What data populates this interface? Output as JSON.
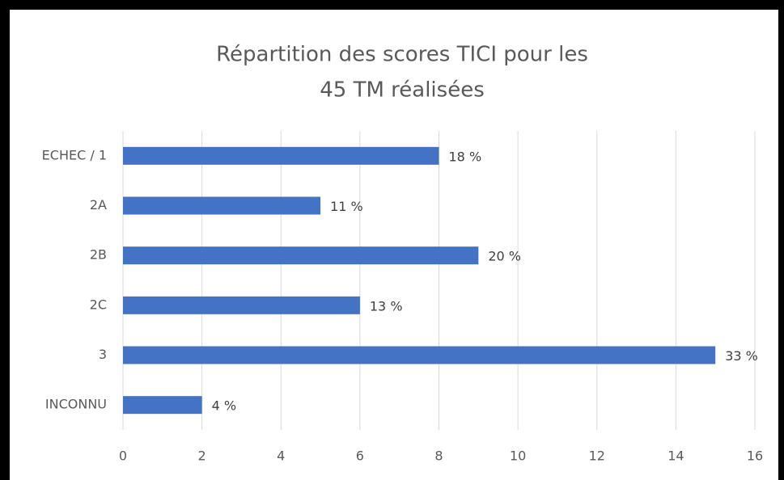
{
  "chart_data": {
    "type": "bar",
    "orientation": "horizontal",
    "title": [
      "Répartition des scores TICI pour les",
      "45 TM réalisées"
    ],
    "categories": [
      "ECHEC / 1",
      "2A",
      "2B",
      "2C",
      "3",
      "INCONNU"
    ],
    "values": [
      8,
      5,
      9,
      6,
      15,
      2
    ],
    "value_labels": [
      "18 %",
      "11 %",
      "20 %",
      "13 %",
      "33 %",
      "4 %"
    ],
    "color": "#4472c4",
    "xlim": [
      0,
      16
    ],
    "xticks": [
      0,
      2,
      4,
      6,
      8,
      10,
      12,
      14,
      16
    ],
    "grid": true
  }
}
